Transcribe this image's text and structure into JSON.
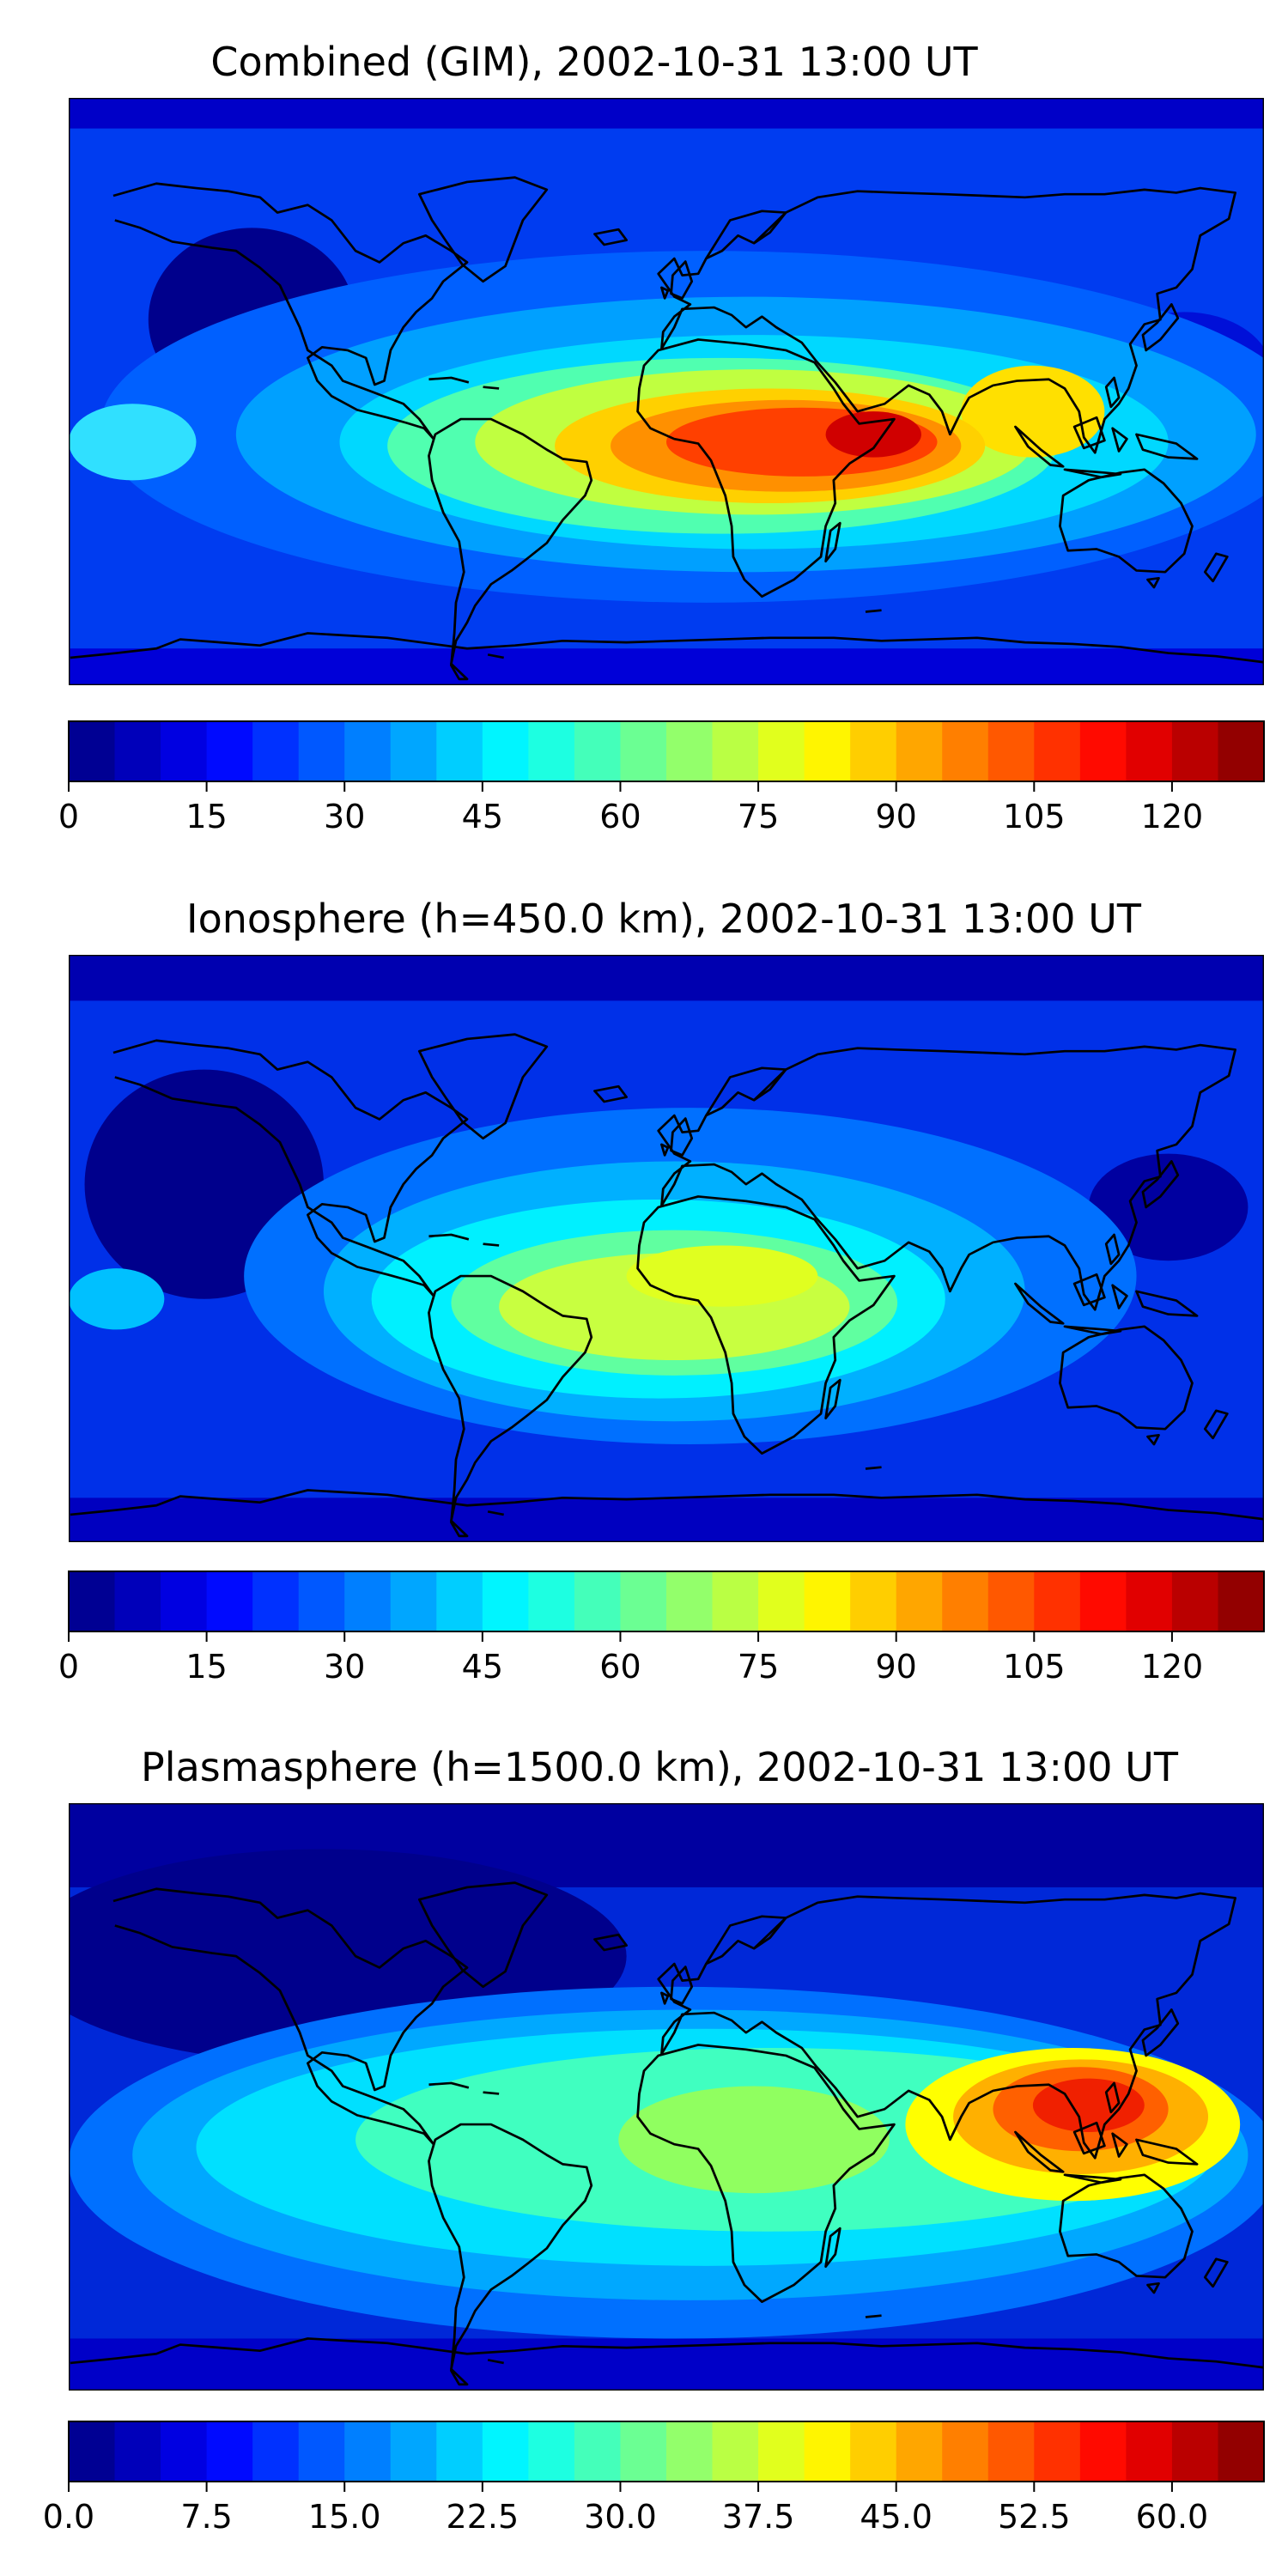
{
  "panels": [
    {
      "title": "Combined (GIM), 2002-10-31 13:00 UT",
      "field": "combined",
      "colorbar_ticks": [
        "0",
        "15",
        "30",
        "45",
        "60",
        "75",
        "90",
        "105",
        "120"
      ],
      "colorbar_range": [
        0,
        130
      ],
      "colorbar_levels": 26
    },
    {
      "title": "Ionosphere  (h=450.0 km), 2002-10-31 13:00 UT",
      "field": "ionosphere",
      "colorbar_ticks": [
        "0",
        "15",
        "30",
        "45",
        "60",
        "75",
        "90",
        "105",
        "120"
      ],
      "colorbar_range": [
        0,
        130
      ],
      "colorbar_levels": 26
    },
    {
      "title": "Plasmasphere (h=1500.0 km), 2002-10-31 13:00 UT",
      "field": "plasmasphere",
      "colorbar_ticks": [
        "0.0",
        "7.5",
        "15.0",
        "22.5",
        "30.0",
        "37.5",
        "45.0",
        "52.5",
        "60.0"
      ],
      "colorbar_range": [
        0,
        65
      ],
      "colorbar_levels": 26
    }
  ],
  "colormap": [
    "#00007f",
    "#0000ff",
    "#007fff",
    "#00ffff",
    "#7fff7f",
    "#ffff00",
    "#ff7f00",
    "#ff0000",
    "#7f0000"
  ]
}
